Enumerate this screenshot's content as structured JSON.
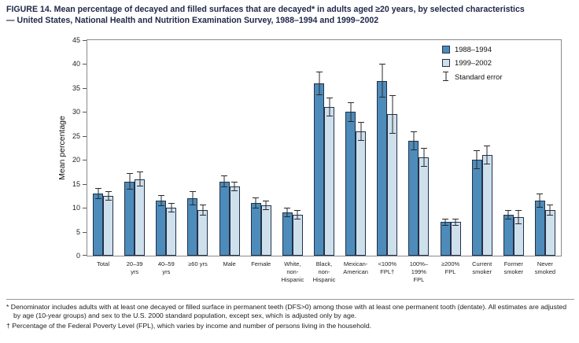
{
  "title": "FIGURE 14. Mean percentage of decayed and filled surfaces that are decayed* in adults aged ≥20 years, by selected characteristics\n— United States, National Health and Nutrition Examination Survey, 1988–1994 and 1999–2002",
  "footnotes": [
    "* Denominator includes adults with at least one decayed or filled surface in permanent teeth (DFS>0) among those with at least one permanent tooth (dentate). All estimates are adjusted by age (10-year groups) and sex to the U.S. 2000 standard population, except sex, which is adjusted only by age.",
    "† Percentage of the Federal Poverty Level (FPL), which varies by income and number of persons living in the household."
  ],
  "chart_data": {
    "type": "bar",
    "title": "Mean percentage of decayed and filled surfaces that are decayed in adults aged ≥20 years",
    "xlabel": "",
    "ylabel": "Mean percentage",
    "ylim": [
      0,
      45
    ],
    "ytick_step": 5,
    "grid": false,
    "legend_position": "top-right-inside",
    "categories": [
      "Total",
      "20–39 yrs",
      "40–59 yrs",
      "≥60 yrs",
      "Male",
      "Female",
      "White, non-Hispanic",
      "Black, non-Hispanic",
      "Mexican-American",
      "<100% FPL†",
      "100%–199% FPL",
      "≥200% FPL",
      "Current smoker",
      "Former smoker",
      "Never smoked"
    ],
    "category_label_lines": [
      [
        "Total"
      ],
      [
        "20–39",
        "yrs"
      ],
      [
        "40–59",
        "yrs"
      ],
      [
        "≥60 yrs"
      ],
      [
        "Male"
      ],
      [
        "Female"
      ],
      [
        "White,",
        "non-",
        "Hispanic"
      ],
      [
        "Black,",
        "non-",
        "Hispanic"
      ],
      [
        "Mexican-",
        "American"
      ],
      [
        "<100%",
        "FPL†"
      ],
      [
        "100%–",
        "199%",
        "FPL"
      ],
      [
        "≥200%",
        "FPL"
      ],
      [
        "Current",
        "smoker"
      ],
      [
        "Former",
        "smoker"
      ],
      [
        "Never",
        "smoked"
      ]
    ],
    "series": [
      {
        "name": "1988–1994",
        "color": "#4d8cba",
        "values": [
          13,
          15.5,
          11.5,
          12,
          15.5,
          11,
          9,
          36,
          30,
          36.5,
          24,
          7,
          20,
          8.5,
          11.5
        ],
        "errors": [
          1.2,
          1.7,
          1.2,
          1.5,
          1.2,
          1.2,
          1.0,
          2.5,
          2.0,
          3.5,
          2.0,
          0.8,
          2.0,
          1.0,
          1.5
        ]
      },
      {
        "name": "1999–2002",
        "color": "#cfe0ed",
        "values": [
          12.5,
          16,
          10,
          9.5,
          14.5,
          10.5,
          8.5,
          31,
          26,
          29.5,
          20.5,
          7,
          21,
          8,
          9.5
        ],
        "errors": [
          1.0,
          1.5,
          1.0,
          1.2,
          1.0,
          1.0,
          1.0,
          2.0,
          2.0,
          4.0,
          2.0,
          0.8,
          2.0,
          1.5,
          1.2
        ]
      }
    ],
    "legend": {
      "standard_error_label": "Standard error"
    }
  }
}
